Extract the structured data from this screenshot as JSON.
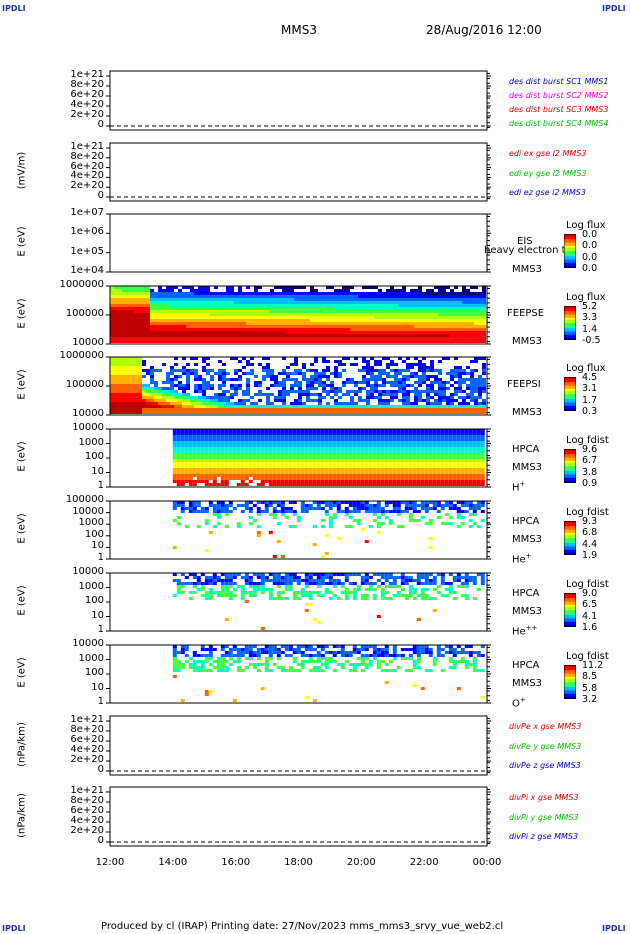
{
  "corners": {
    "tl": "IPDLI",
    "tr": "IPDLI",
    "bl": "IPDLI",
    "br": "IPDLI"
  },
  "header": {
    "spacecraft": "MMS3",
    "datetime": "28/Aug/2016 12:00"
  },
  "x_ticks": [
    "12:00",
    "14:00",
    "16:00",
    "18:00",
    "20:00",
    "22:00",
    "00:00"
  ],
  "footer": "Produced by cl (IRAP)   Printing date: 27/Nov/2023   mms_mms3_srvy_vue_web2.cl",
  "colors": {
    "red": "#e00000",
    "magenta": "#e000e0",
    "green": "#00c000",
    "blue": "#0000d0"
  },
  "panels": [
    {
      "ylabel": "",
      "ticks": [
        "1e+21",
        "8e+20",
        "6e+20",
        "4e+20",
        "2e+20",
        "0"
      ],
      "legend": [
        {
          "text": "des dist burst SC1 MMS1",
          "color": "blue"
        },
        {
          "text": "des dist burst SC2 MMS2",
          "color": "magenta"
        },
        {
          "text": "des dist burst SC3 MMS3",
          "color": "red"
        },
        {
          "text": "des dist burst SC4 MMS4",
          "color": "green"
        }
      ]
    },
    {
      "ylabel": "(mV/m)",
      "ticks": [
        "1e+21",
        "8e+20",
        "6e+20",
        "4e+20",
        "2e+20",
        "0"
      ],
      "legend": [
        {
          "text": "edi ex gse l2 MMS3",
          "color": "red"
        },
        {
          "text": "edi ey gse l2 MMS3",
          "color": "green"
        },
        {
          "text": "edi ez gse l2 MMS3",
          "color": "blue"
        }
      ]
    },
    {
      "ylabel": "E (eV)",
      "ticks": [
        "1e+07",
        "1e+06",
        "1e+05",
        "1e+04"
      ],
      "side": [
        "EIS",
        "MMS3"
      ],
      "overlay": "heavy electron to",
      "cb": {
        "title": "Log flux",
        "labels": [
          "0.0",
          "0.0",
          "0.0",
          "0.0"
        ]
      }
    },
    {
      "ylabel": "E (eV)",
      "ticks": [
        "1000000",
        "100000",
        "10000"
      ],
      "side": [
        "FEEPSE",
        "MMS3"
      ],
      "cb": {
        "title": "Log flux",
        "labels": [
          "5.2",
          "3.3",
          "1.4",
          "-0.5"
        ]
      }
    },
    {
      "ylabel": "E (eV)",
      "ticks": [
        "1000000",
        "100000",
        "10000"
      ],
      "side": [
        "FEEPSI",
        "MMS3"
      ],
      "cb": {
        "title": "Log flux",
        "labels": [
          "4.5",
          "3.1",
          "1.7",
          "0.3"
        ]
      }
    },
    {
      "ylabel": "E (eV)",
      "ticks": [
        "10000",
        "1000",
        "100",
        "10",
        "1"
      ],
      "side": [
        "HPCA",
        "MMS3",
        "H"
      ],
      "sup": "+",
      "cb": {
        "title": "Log fdist",
        "labels": [
          "9.6",
          "6.7",
          "3.8",
          "0.9"
        ]
      }
    },
    {
      "ylabel": "E (eV)",
      "ticks": [
        "100000",
        "10000",
        "1000",
        "100",
        "10",
        "1"
      ],
      "side": [
        "HPCA",
        "MMS3",
        "He"
      ],
      "sup": "+",
      "cb": {
        "title": "Log fdist",
        "labels": [
          "9.3",
          "6.8",
          "4.4",
          "1.9"
        ]
      }
    },
    {
      "ylabel": "E (eV)",
      "ticks": [
        "10000",
        "1000",
        "100",
        "10",
        "1"
      ],
      "side": [
        "HPCA",
        "MMS3",
        "He"
      ],
      "sup": "++",
      "cb": {
        "title": "Log fdist",
        "labels": [
          "9.0",
          "6.5",
          "4.1",
          "1.6"
        ]
      }
    },
    {
      "ylabel": "E (eV)",
      "ticks": [
        "10000",
        "1000",
        "100",
        "10",
        "1"
      ],
      "side": [
        "HPCA",
        "MMS3",
        "O"
      ],
      "sup": "+",
      "cb": {
        "title": "Log fdist",
        "labels": [
          "11.2",
          "8.5",
          "5.8",
          "3.2"
        ]
      }
    },
    {
      "ylabel": "(nPa/km)",
      "ticks": [
        "1e+21",
        "8e+20",
        "6e+20",
        "4e+20",
        "2e+20",
        "0"
      ],
      "legend": [
        {
          "text": "divPe x gse MMS3",
          "color": "red"
        },
        {
          "text": "divPe y gse MMS3",
          "color": "green"
        },
        {
          "text": "divPe z gse MMS3",
          "color": "blue"
        }
      ]
    },
    {
      "ylabel": "(nPa/km)",
      "ticks": [
        "1e+21",
        "8e+20",
        "6e+20",
        "4e+20",
        "2e+20",
        "0"
      ],
      "legend": [
        {
          "text": "divPi x gse MMS3",
          "color": "red"
        },
        {
          "text": "divPi y gse MMS3",
          "color": "green"
        },
        {
          "text": "divPi z gse MMS3",
          "color": "blue"
        }
      ]
    }
  ],
  "chart_data": {
    "type": "heatmap",
    "x_range": [
      "12:00",
      "00:00"
    ],
    "panels": [
      {
        "kind": "line",
        "ylim": [
          0,
          1e+21
        ],
        "series": [
          "des dist burst SC1 MMS1",
          "des dist burst SC2 MMS2",
          "des dist burst SC3 MMS3",
          "des dist burst SC4 MMS4"
        ],
        "values": [
          0
        ]
      },
      {
        "kind": "line",
        "ylim": [
          0,
          1e+21
        ],
        "series": [
          "edi ex gse l2 MMS3",
          "edi ey gse l2 MMS3",
          "edi ez gse l2 MMS3"
        ],
        "values": [
          0
        ]
      },
      {
        "kind": "spectrogram",
        "instrument": "EIS",
        "ylim": [
          10000.0,
          10000000.0
        ],
        "log_y": true,
        "colorbar": [
          0.0,
          0.0,
          0.0,
          0.0
        ],
        "data": "none"
      },
      {
        "kind": "spectrogram",
        "instrument": "FEEPSE",
        "ylim": [
          10000.0,
          1000000.0
        ],
        "log_y": true,
        "colorbar": [
          5.2,
          3.3,
          1.4,
          -0.5
        ],
        "data_start": "12:00"
      },
      {
        "kind": "spectrogram",
        "instrument": "FEEPSI",
        "ylim": [
          10000.0,
          1000000.0
        ],
        "log_y": true,
        "colorbar": [
          4.5,
          3.1,
          1.7,
          0.3
        ],
        "data_start": "12:00"
      },
      {
        "kind": "spectrogram",
        "instrument": "HPCA H+",
        "ylim": [
          1,
          10000.0
        ],
        "log_y": true,
        "colorbar": [
          9.6,
          6.7,
          3.8,
          0.9
        ],
        "data_start": "14:00"
      },
      {
        "kind": "spectrogram",
        "instrument": "HPCA He+",
        "ylim": [
          1,
          100000.0
        ],
        "log_y": true,
        "colorbar": [
          9.3,
          6.8,
          4.4,
          1.9
        ],
        "data_start": "14:00"
      },
      {
        "kind": "spectrogram",
        "instrument": "HPCA He++",
        "ylim": [
          1,
          10000.0
        ],
        "log_y": true,
        "colorbar": [
          9.0,
          6.5,
          4.1,
          1.6
        ],
        "data_start": "14:00"
      },
      {
        "kind": "spectrogram",
        "instrument": "HPCA O+",
        "ylim": [
          1,
          10000.0
        ],
        "log_y": true,
        "colorbar": [
          11.2,
          8.5,
          5.8,
          3.2
        ],
        "data_start": "14:00"
      },
      {
        "kind": "line",
        "ylim": [
          0,
          1e+21
        ],
        "series": [
          "divPe x gse MMS3",
          "divPe y gse MMS3",
          "divPe z gse MMS3"
        ],
        "values": [
          0
        ]
      },
      {
        "kind": "line",
        "ylim": [
          0,
          1e+21
        ],
        "series": [
          "divPi x gse MMS3",
          "divPi y gse MMS3",
          "divPi z gse MMS3"
        ],
        "values": [
          0
        ]
      }
    ]
  }
}
